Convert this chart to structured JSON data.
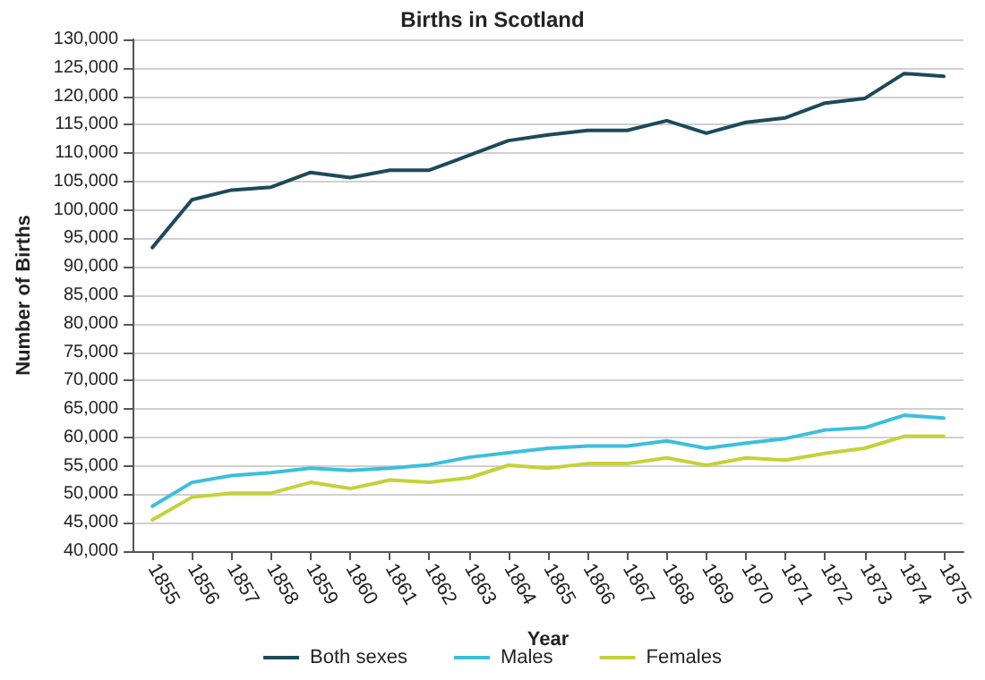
{
  "chart_data": {
    "type": "line",
    "title": "Births in Scotland",
    "xlabel": "Year",
    "ylabel": "Number of Births",
    "categories": [
      "1855",
      "1856",
      "1857",
      "1858",
      "1859",
      "1860",
      "1861",
      "1862",
      "1863",
      "1864",
      "1865",
      "1866",
      "1867",
      "1868",
      "1869",
      "1870",
      "1871",
      "1872",
      "1873",
      "1874",
      "1875"
    ],
    "series": [
      {
        "name": "Both sexes",
        "color": "#1d4a5a",
        "values": [
          93400,
          101800,
          103500,
          104000,
          106600,
          105700,
          107000,
          107000,
          109600,
          112200,
          113200,
          114000,
          114000,
          115700,
          113500,
          115400,
          116200,
          118800,
          119600,
          124000,
          123500
        ]
      },
      {
        "name": "Males",
        "color": "#3bbfdc",
        "values": [
          47900,
          52100,
          53300,
          53800,
          54600,
          54200,
          54600,
          55200,
          56500,
          57300,
          58100,
          58500,
          58500,
          59400,
          58100,
          59000,
          59800,
          61300,
          61700,
          63900,
          63400
        ]
      },
      {
        "name": "Females",
        "color": "#c5d13a",
        "values": [
          45500,
          49500,
          50200,
          50200,
          52100,
          51000,
          52500,
          52100,
          52900,
          55100,
          54600,
          55400,
          55400,
          56400,
          55100,
          56400,
          56000,
          57200,
          58100,
          60200,
          60200
        ]
      }
    ],
    "ylim": [
      40000,
      130000
    ],
    "yticks": [
      {
        "value": 40000,
        "label": "40,000"
      },
      {
        "value": 45000,
        "label": "45,000"
      },
      {
        "value": 50000,
        "label": "50,000"
      },
      {
        "value": 55000,
        "label": "55,000"
      },
      {
        "value": 60000,
        "label": "60,000"
      },
      {
        "value": 65000,
        "label": "65,000"
      },
      {
        "value": 70000,
        "label": "70,000"
      },
      {
        "value": 75000,
        "label": "75,000"
      },
      {
        "value": 80000,
        "label": "80,000"
      },
      {
        "value": 85000,
        "label": "85,000"
      },
      {
        "value": 90000,
        "label": "90,000"
      },
      {
        "value": 95000,
        "label": "95,000"
      },
      {
        "value": 100000,
        "label": "100,000"
      },
      {
        "value": 105000,
        "label": "105,000"
      },
      {
        "value": 110000,
        "label": "110,000"
      },
      {
        "value": 115000,
        "label": "115,000"
      },
      {
        "value": 120000,
        "label": "120,000"
      },
      {
        "value": 125000,
        "label": "125,000"
      },
      {
        "value": 130000,
        "label": "130,000"
      }
    ],
    "grid": "y",
    "legend": "bottom",
    "marker": "none",
    "line_style": "solid"
  }
}
